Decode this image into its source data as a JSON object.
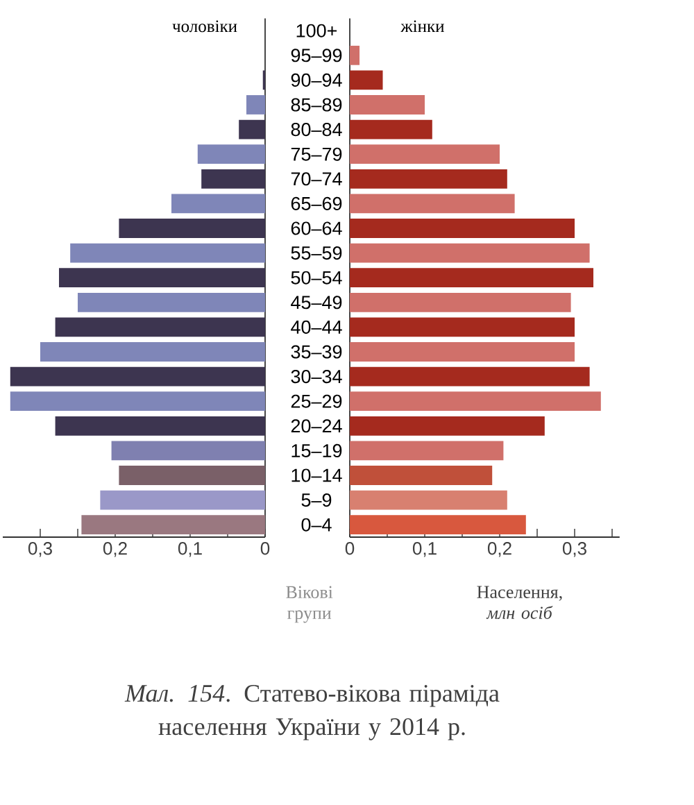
{
  "chart_data": [
    {
      "type": "bar",
      "orientation": "horizontal",
      "title": "чоловіки",
      "tick_labels": "x",
      "categories": [
        null,
        null,
        null,
        null,
        null,
        null,
        null,
        null,
        null,
        null,
        null,
        null,
        null,
        null,
        null,
        null,
        null,
        null,
        null,
        null,
        null
      ],
      "values": [
        0,
        0,
        0.003,
        0.025,
        0.035,
        0.09,
        0.085,
        0.125,
        0.195,
        0.26,
        0.275,
        0.25,
        0.28,
        0.3,
        0.34,
        0.34,
        0.28,
        0.205,
        0.195,
        0.22,
        0.245
      ],
      "colors": [
        "#3d3550",
        "#7f86b8",
        "#3d3550",
        "#7f86b8",
        "#3d3550",
        "#7f86b8",
        "#3d3550",
        "#7f86b8",
        "#3d3550",
        "#7f86b8",
        "#3d3550",
        "#7f86b8",
        "#3d3550",
        "#7f86b8",
        "#3d3550",
        "#7f86b8",
        "#3d3550",
        "#7f80b0",
        "#7a6068",
        "#9a98c8",
        "#9a7880"
      ],
      "xlim": [
        0.35,
        0
      ],
      "xticks": [
        {
          "value": 0.3,
          "label": "0,3"
        },
        {
          "value": 0.25,
          "label": null
        },
        {
          "value": 0.2,
          "label": "0,2"
        },
        {
          "value": 0.15,
          "label": null
        },
        {
          "value": 0.1,
          "label": "0,1"
        },
        {
          "value": 0.05,
          "label": null
        },
        0
      ],
      "annotations": [
        "*Мал. 154*. Статево-вікова піраміда населення України у 2014 р."
      ]
    },
    {
      "type": "bar",
      "orientation": "horizontal",
      "title": "жінки",
      "xlabel": "Населення, *млн осіб*",
      "ylabel": "Вікові групи",
      "categories": [
        "100+",
        "95–99",
        "90–94",
        "85–89",
        "80–84",
        "75–79",
        "70–74",
        "65–69",
        "60–64",
        "55–59",
        "50–54",
        "45–49",
        "40–44",
        "35–39",
        "30–34",
        "25–29",
        "20–24",
        "15–19",
        "10–14",
        "5–9",
        "0–4"
      ],
      "values": [
        0,
        0.013,
        0.044,
        0.1,
        0.11,
        0.2,
        0.21,
        0.22,
        0.3,
        0.32,
        0.325,
        0.295,
        0.3,
        0.3,
        0.32,
        0.335,
        0.26,
        0.205,
        0.19,
        0.21,
        0.235
      ],
      "colors": [
        "#a52a1e",
        "#d0706a",
        "#a52a1e",
        "#d0706a",
        "#a52a1e",
        "#d0706a",
        "#a52a1e",
        "#d0706a",
        "#a52a1e",
        "#d0706a",
        "#a52a1e",
        "#d0706a",
        "#a52a1e",
        "#d0706a",
        "#a52a1e",
        "#d0706a",
        "#a52a1e",
        "#d0706a",
        "#c0503a",
        "#d88070",
        "#d8583e"
      ],
      "xlim": [
        0,
        0.36
      ],
      "xticks": [
        0,
        {
          "value": 0.05,
          "label": null
        },
        {
          "value": 0.1,
          "label": "0,1"
        },
        {
          "value": 0.15,
          "label": null
        },
        {
          "value": 0.2,
          "label": "0,2"
        },
        {
          "value": 0.25,
          "label": null
        },
        {
          "value": 0.3,
          "label": "0,3"
        },
        {
          "value": 0.35,
          "label": null
        }
      ]
    }
  ]
}
